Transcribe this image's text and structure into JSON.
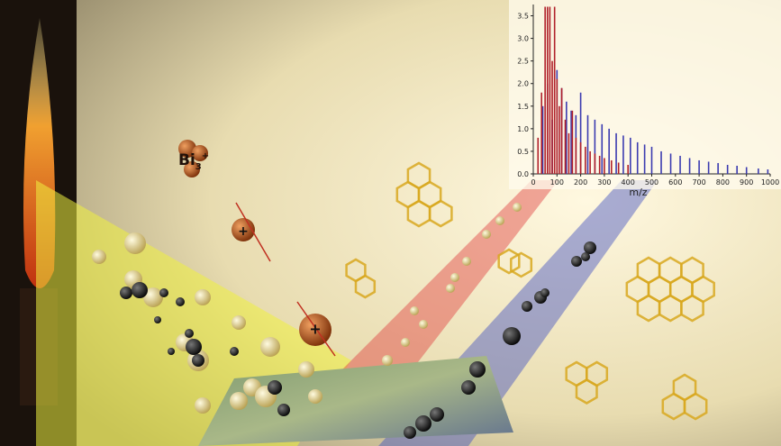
{
  "ion_label": {
    "symbol": "Bi",
    "subscript": "3",
    "charge": "+"
  },
  "ions": [
    {
      "label": "+"
    },
    {
      "label": "+"
    }
  ],
  "chart_data": {
    "type": "stem",
    "xlabel": "m/z",
    "xlim": [
      0,
      1000
    ],
    "xticks": [
      0,
      100,
      200,
      300,
      400,
      500,
      600,
      700,
      800,
      900,
      1000
    ],
    "ylim": [
      0,
      3.75
    ],
    "yticks": [
      {
        "value": 0,
        "label": "0.0"
      },
      {
        "value": 0.5,
        "label": "0.5"
      },
      {
        "value": 1,
        "label": "1.0"
      },
      {
        "value": 1.5,
        "label": "1.5"
      },
      {
        "value": 2,
        "label": "2.0"
      },
      {
        "value": 2.5,
        "label": "2.5"
      },
      {
        "value": 3,
        "label": "3.0"
      },
      {
        "value": 3.5,
        "label": "3.5"
      }
    ],
    "series": [
      {
        "color": "#3b3bb0",
        "x": [
          40,
          60,
          80,
          100,
          120,
          140,
          160,
          180,
          200,
          230,
          260,
          290,
          320,
          350,
          380,
          410,
          440,
          470,
          500,
          540,
          580,
          620,
          660,
          700,
          740,
          780,
          820,
          860,
          900,
          950,
          990
        ],
        "values": [
          1.5,
          2.0,
          1.2,
          2.3,
          1.9,
          1.6,
          1.4,
          1.3,
          1.8,
          1.3,
          1.2,
          1.1,
          1.0,
          0.9,
          0.85,
          0.8,
          0.7,
          0.65,
          0.6,
          0.5,
          0.45,
          0.4,
          0.35,
          0.3,
          0.27,
          0.24,
          0.2,
          0.18,
          0.15,
          0.12,
          0.1
        ]
      },
      {
        "color": "#b0202a",
        "x": [
          20,
          35,
          50,
          60,
          70,
          80,
          90,
          100,
          110,
          120,
          135,
          150,
          165,
          180,
          200,
          220,
          240,
          260,
          280,
          300,
          330,
          360,
          400
        ],
        "values": [
          0.8,
          1.8,
          3.7,
          3.7,
          3.7,
          2.5,
          3.7,
          2.1,
          1.5,
          1.9,
          1.2,
          0.9,
          1.4,
          0.8,
          0.7,
          0.6,
          0.5,
          0.45,
          0.4,
          0.35,
          0.3,
          0.25,
          0.2
        ]
      }
    ]
  }
}
